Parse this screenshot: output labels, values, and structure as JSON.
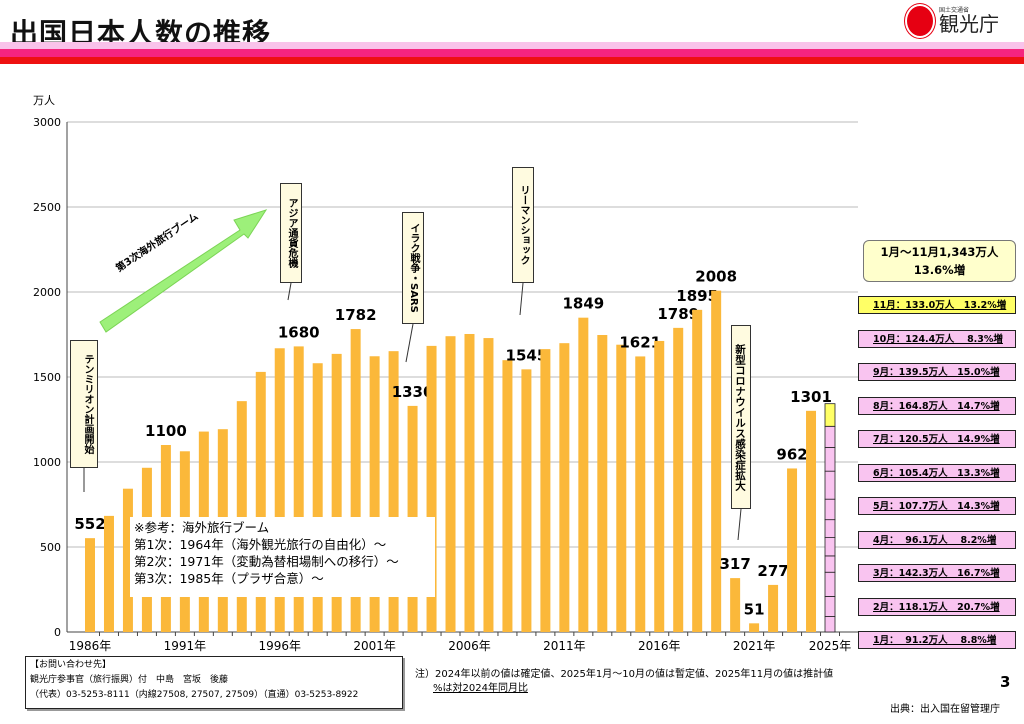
{
  "header": {
    "title": "出国日本人数の推移",
    "logo_sub": "国土交通省",
    "logo_main": "観光庁"
  },
  "chart_data": {
    "type": "bar",
    "ylabel": "万人",
    "ylim": [
      0,
      3000
    ],
    "yticks": [
      0,
      500,
      1000,
      1500,
      2000,
      2500,
      3000
    ],
    "grid": true,
    "xtick_labels": [
      "1986年",
      "1991年",
      "1996年",
      "2001年",
      "2006年",
      "2011年",
      "2016年",
      "2021年",
      "2025年"
    ],
    "categories": [
      1986,
      1987,
      1988,
      1989,
      1990,
      1991,
      1992,
      1993,
      1994,
      1995,
      1996,
      1997,
      1998,
      1999,
      2000,
      2001,
      2002,
      2003,
      2004,
      2005,
      2006,
      2007,
      2008,
      2009,
      2010,
      2011,
      2012,
      2013,
      2014,
      2015,
      2016,
      2017,
      2018,
      2019,
      2020,
      2021,
      2022,
      2023,
      2024,
      2025
    ],
    "values": [
      552,
      683,
      843,
      966,
      1100,
      1063,
      1179,
      1193,
      1358,
      1530,
      1669,
      1680,
      1581,
      1636,
      1782,
      1622,
      1652,
      1330,
      1683,
      1740,
      1753,
      1729,
      1599,
      1545,
      1664,
      1699,
      1849,
      1747,
      1690,
      1621,
      1712,
      1789,
      1895,
      2008,
      317,
      51,
      277,
      962,
      1301,
      1343
    ],
    "data_labels": {
      "1986": "552",
      "1990": "1100",
      "1997": "1680",
      "2000": "1782",
      "2003": "1330",
      "2009": "1545",
      "2012": "1849",
      "2015": "1621",
      "2017": "1789",
      "2018": "1895",
      "2019": "2008",
      "2020": "317",
      "2021": "51",
      "2022": "277",
      "2023": "962",
      "2024": "1301"
    },
    "bar_color": "#fbb83a",
    "stack_2025": {
      "months": [
        91.2,
        118.1,
        142.3,
        96.1,
        107.7,
        105.4,
        120.5,
        164.8,
        139.5,
        124.4,
        133.0
      ],
      "color": "#f9c4f0",
      "latest_color": "#ffff66"
    }
  },
  "annotations": {
    "tenmillion": "テンミリオン計画開始",
    "boom3": "第3次海外旅行ブーム",
    "asia": "アジア通貨危機",
    "iraq": "イラク戦争・SARS",
    "lehman": "リーマンショック",
    "covid": "新型コロナウイルス感染症拡大"
  },
  "note": {
    "title": "※参考：海外旅行ブーム",
    "lines": [
      "第1次：1964年（海外観光旅行の自由化）～",
      "第2次：1971年（変動為替相場制への移行）～",
      "第3次：1985年（プラザ合意）～"
    ]
  },
  "summary": {
    "line1": "1月～11月1,343万人",
    "line2": "13.6%増"
  },
  "monthly": [
    "11月：133.0万人　13.2%増",
    "10月：124.4万人　 8.3%増",
    "9月：139.5万人　15.0%増",
    "8月：164.8万人　14.7%増",
    "7月：120.5万人　14.9%増",
    "6月：105.4万人　13.3%増",
    "5月：107.7万人　14.3%増",
    "4月：  96.1万人　 8.2%増",
    "3月：142.3万人　16.7%増",
    "2月：118.1万人　20.7%増",
    "1月：  91.2万人　 8.8%増"
  ],
  "contact": {
    "title": "【お問い合わせ先】",
    "line1": "観光庁参事官（旅行振興）付　中島　宮坂　後藤",
    "line2": "（代表）03-5253-8111（内線27508, 27507, 27509）（直通）03-5253-8922"
  },
  "footnote": {
    "line1": "注）2024年以前の値は確定値、2025年1月～10月の値は暫定値、2025年11月の値は推計値",
    "line2": "%は対2024年同月比"
  },
  "page_number": "3",
  "source": "出典：出入国在留管理庁"
}
